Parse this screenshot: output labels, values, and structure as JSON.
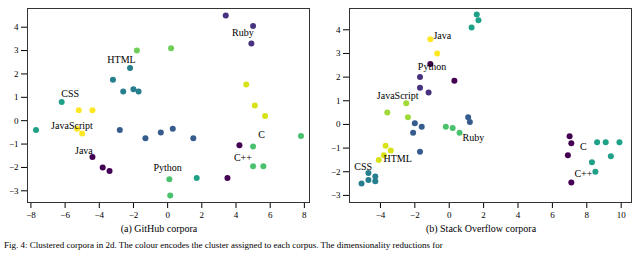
{
  "caption": "Fig. 4: Clustered corpora in 2d. The colour encodes the cluster assigned to each corpus. The dimensionality reductions for",
  "chart_data": [
    {
      "type": "scatter",
      "title": "(a) GitHub corpora",
      "xlim": [
        -8.2,
        8.3
      ],
      "xticks": [
        -8,
        -6,
        -4,
        -2,
        0,
        2,
        4,
        6,
        8
      ],
      "ylim": [
        -3.5,
        4.8
      ],
      "yticks": [
        -3,
        -2,
        -1,
        0,
        1,
        2,
        3,
        4
      ],
      "x": [
        3.4,
        5.0,
        4.9,
        -1.8,
        0.2,
        -3.2,
        -2.2,
        -2.6,
        -2.0,
        -1.7,
        -6.2,
        -7.7,
        -5.2,
        -4.4,
        -5.3,
        -5.0,
        -2.8,
        -1.3,
        -0.4,
        0.3,
        1.5,
        -4.4,
        -3.8,
        -3.4,
        0.1,
        0.15,
        1.7,
        3.5,
        4.2,
        5.0,
        5.0,
        5.6,
        7.8,
        4.6,
        5.1,
        5.7
      ],
      "values": [
        4.5,
        4.05,
        3.3,
        3.0,
        3.1,
        1.75,
        2.25,
        1.25,
        1.35,
        1.25,
        0.8,
        -0.4,
        0.45,
        0.45,
        -0.35,
        -0.55,
        -0.4,
        -0.75,
        -0.5,
        -0.35,
        -0.75,
        -1.55,
        -2.0,
        -2.15,
        -2.5,
        -3.2,
        -2.45,
        -2.45,
        -1.05,
        -1.1,
        -1.95,
        -1.95,
        -0.65,
        1.55,
        0.65,
        0.2
      ],
      "colors": [
        "#46327e",
        "#46327e",
        "#46327e",
        "#6ece58",
        "#6ece58",
        "#277f8e",
        "#277f8e",
        "#277f8e",
        "#277f8e",
        "#277f8e",
        "#1fa187",
        "#1fa187",
        "#fde725",
        "#fde725",
        "#fde725",
        "#fde725",
        "#365c8d",
        "#365c8d",
        "#365c8d",
        "#365c8d",
        "#365c8d",
        "#440154",
        "#440154",
        "#440154",
        "#4ac16d",
        "#4ac16d",
        "#1fa187",
        "#440154",
        "#440154",
        "#4ac16d",
        "#4ac16d",
        "#4ac16d",
        "#4ac16d",
        "#d8e219",
        "#d8e219",
        "#d8e219"
      ],
      "annotations": [
        {
          "text": "Ruby",
          "x": 4.4,
          "y": 3.75
        },
        {
          "text": "HTML",
          "x": -2.7,
          "y": 2.6
        },
        {
          "text": "CSS",
          "x": -5.7,
          "y": 1.15
        },
        {
          "text": "JavaScript",
          "x": -5.6,
          "y": -0.2
        },
        {
          "text": "Java",
          "x": -4.9,
          "y": -1.3
        },
        {
          "text": "Python",
          "x": 0.0,
          "y": -2.0
        },
        {
          "text": "C++",
          "x": 4.4,
          "y": -1.6
        },
        {
          "text": "C",
          "x": 5.5,
          "y": -0.6
        }
      ]
    },
    {
      "type": "scatter",
      "title": "(b) Stack Overflow corpora",
      "xlim": [
        -5.8,
        10.6
      ],
      "xticks": [
        -4,
        -2,
        0,
        2,
        4,
        6,
        8,
        10
      ],
      "ylim": [
        -3.3,
        4.9
      ],
      "yticks": [
        -3,
        -2,
        -1,
        0,
        1,
        2,
        3,
        4
      ],
      "x": [
        1.6,
        1.7,
        1.3,
        -1.1,
        -0.7,
        -1.1,
        -1.7,
        0.3,
        -1.7,
        -1.2,
        -2.5,
        -3.6,
        -2.4,
        -2.0,
        -1.6,
        -2.1,
        -0.2,
        0.2,
        0.6,
        1.1,
        1.2,
        -3.7,
        -3.4,
        -3.8,
        -4.1,
        -1.7,
        -4.3,
        -4.7,
        -4.3,
        -5.1,
        -4.7,
        7.0,
        7.1,
        6.9,
        7.1,
        8.6,
        9.1,
        9.9,
        8.3,
        8.5,
        9.4
      ],
      "values": [
        4.65,
        4.4,
        4.1,
        3.6,
        3.0,
        2.55,
        2.0,
        1.85,
        1.55,
        1.35,
        0.9,
        0.5,
        0.3,
        0.05,
        -0.1,
        -0.35,
        -0.1,
        -0.15,
        -0.35,
        0.3,
        0.1,
        -0.9,
        -1.1,
        -1.3,
        -1.5,
        -1.15,
        -2.2,
        -2.35,
        -2.4,
        -2.5,
        -2.05,
        -0.5,
        -0.8,
        -1.3,
        -2.45,
        -0.75,
        -0.75,
        -0.75,
        -1.6,
        -2.0,
        -1.35
      ],
      "colors": [
        "#1fa187",
        "#1fa187",
        "#1fa187",
        "#fde725",
        "#fde725",
        "#440154",
        "#46327e",
        "#440154",
        "#46327e",
        "#46327e",
        "#a0da39",
        "#a0da39",
        "#a0da39",
        "#365c8d",
        "#365c8d",
        "#365c8d",
        "#4ac16d",
        "#4ac16d",
        "#4ac16d",
        "#365c8d",
        "#365c8d",
        "#d8e219",
        "#d8e219",
        "#d8e219",
        "#d8e219",
        "#365c8d",
        "#277f8e",
        "#277f8e",
        "#277f8e",
        "#277f8e",
        "#277f8e",
        "#440154",
        "#440154",
        "#440154",
        "#440154",
        "#1fa187",
        "#1fa187",
        "#1fa187",
        "#1fa187",
        "#1fa187",
        "#1fa187"
      ],
      "annotations": [
        {
          "text": "Java",
          "x": -0.4,
          "y": 3.75
        },
        {
          "text": "Python",
          "x": -1.0,
          "y": 2.45
        },
        {
          "text": "JavaScript",
          "x": -3.0,
          "y": 1.2
        },
        {
          "text": "Ruby",
          "x": 1.4,
          "y": -0.55
        },
        {
          "text": "HTML",
          "x": -3.0,
          "y": -1.45
        },
        {
          "text": "CSS",
          "x": -5.0,
          "y": -1.8
        },
        {
          "text": "C",
          "x": 7.8,
          "y": -0.95
        },
        {
          "text": "C++",
          "x": 7.8,
          "y": -2.1
        }
      ]
    }
  ]
}
